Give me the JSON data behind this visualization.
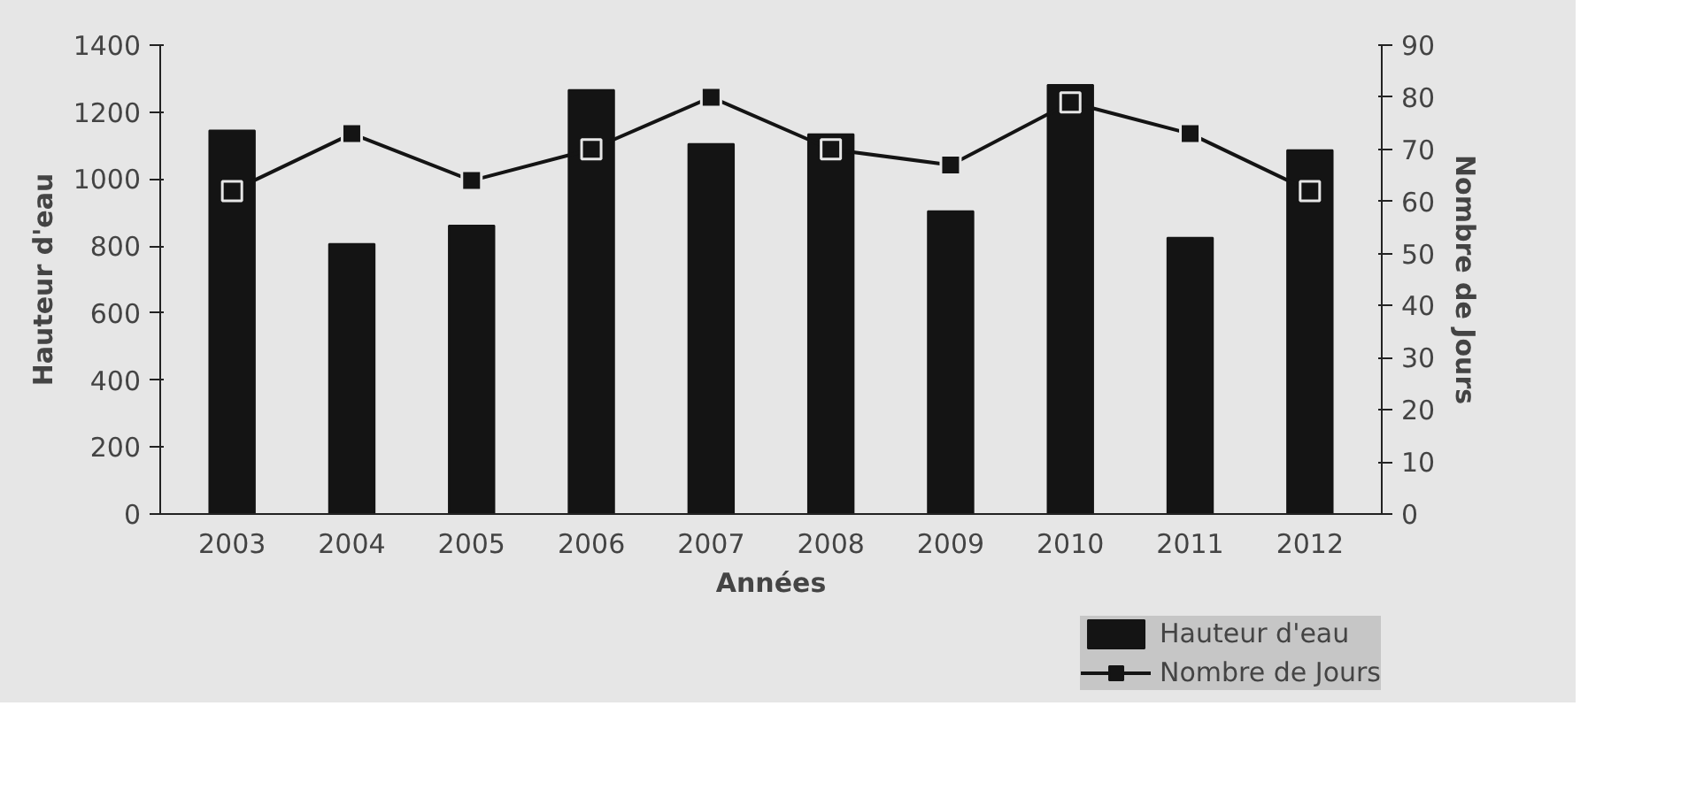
{
  "chart_data": {
    "type": "bar",
    "xlabel": "Années",
    "ylabel": "Hauteur d'eau",
    "y2label": "Nombre de Jours",
    "categories": [
      "2003",
      "2004",
      "2005",
      "2006",
      "2007",
      "2008",
      "2009",
      "2010",
      "2011",
      "2012"
    ],
    "series": [
      {
        "name": "Hauteur d'eau",
        "color": "#141414",
        "values": [
          1145,
          806,
          861,
          1266,
          1105,
          1134,
          904,
          1281,
          825,
          1086
        ]
      },
      {
        "name": "Nombre de Jours",
        "type": "line",
        "axis": "y2",
        "color": "#141414",
        "marker": "square",
        "values": [
          62,
          73,
          64,
          70,
          80,
          70,
          67,
          79,
          73,
          62
        ]
      }
    ],
    "ylim": [
      0,
      1400
    ],
    "yticks": [
      0,
      200,
      400,
      600,
      800,
      1000,
      1200,
      1400
    ],
    "y2lim": [
      0,
      90
    ],
    "y2ticks": [
      0,
      10,
      20,
      30,
      40,
      50,
      60,
      70,
      80,
      90
    ],
    "legend": "bottom right"
  }
}
